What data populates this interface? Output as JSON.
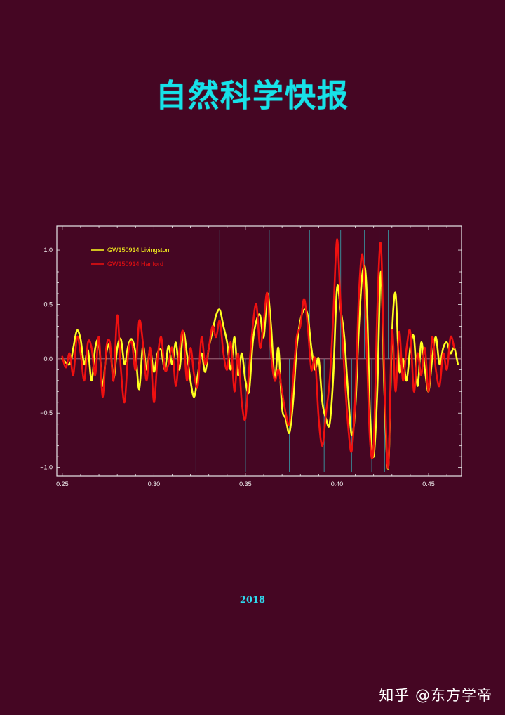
{
  "title": "自然科学快报",
  "year": "2018",
  "watermark": "知乎 @东方学帝",
  "colors": {
    "background": "#450623",
    "title": "#17e2e8",
    "livingston": "#ffff1e",
    "hanford": "#ef1010",
    "marker_lines": "#3a8a97",
    "frame": "#e8e8e8"
  },
  "chart_data": {
    "type": "line",
    "title": "",
    "xlabel": "",
    "ylabel": "",
    "xlim": [
      0.247,
      0.468
    ],
    "ylim": [
      -1.08,
      1.22
    ],
    "xticks": [
      0.25,
      0.3,
      0.35,
      0.4,
      0.45
    ],
    "xtick_labels": [
      "0.25",
      "0.30",
      "0.35",
      "0.40",
      "0.45"
    ],
    "yticks": [
      -1.0,
      -0.5,
      0.0,
      0.5,
      1.0
    ],
    "ytick_labels": [
      "−1.0",
      "−0.5",
      "0.0",
      "0.5",
      "1.0"
    ],
    "legend_position": "top-left",
    "grid": false,
    "zero_line": true,
    "marker_lines_top": [
      0.336,
      0.363,
      0.385,
      0.402,
      0.415,
      0.423,
      0.428
    ],
    "marker_lines_bottom": [
      0.323,
      0.35,
      0.374,
      0.393,
      0.408,
      0.419,
      0.426
    ],
    "series": [
      {
        "name": "GW150914 Livingston",
        "color": "#ffff1e",
        "x": [
          0.25,
          0.254,
          0.256,
          0.258,
          0.26,
          0.262,
          0.264,
          0.266,
          0.268,
          0.27,
          0.272,
          0.274,
          0.276,
          0.278,
          0.28,
          0.282,
          0.284,
          0.286,
          0.288,
          0.29,
          0.292,
          0.294,
          0.296,
          0.298,
          0.3,
          0.302,
          0.304,
          0.306,
          0.308,
          0.31,
          0.312,
          0.314,
          0.316,
          0.318,
          0.32,
          0.322,
          0.324,
          0.326,
          0.328,
          0.33,
          0.332,
          0.334,
          0.336,
          0.338,
          0.34,
          0.342,
          0.344,
          0.346,
          0.348,
          0.35,
          0.352,
          0.354,
          0.356,
          0.358,
          0.36,
          0.362,
          0.364,
          0.366,
          0.368,
          0.37,
          0.372,
          0.374,
          0.376,
          0.378,
          0.38,
          0.382,
          0.384,
          0.386,
          0.388,
          0.39,
          0.392,
          0.394,
          0.396,
          0.398,
          0.4,
          0.402,
          0.404,
          0.406,
          0.408,
          0.41,
          0.412,
          0.414,
          0.416,
          0.418,
          0.42,
          0.422,
          0.424,
          0.426,
          0.428,
          0.43,
          0.432,
          0.434,
          0.436,
          0.438,
          0.44,
          0.442,
          0.444,
          0.446,
          0.448,
          0.45,
          0.452,
          0.454,
          0.456,
          0.458,
          0.46,
          0.462,
          0.464,
          0.466
        ],
        "y": [
          0.0,
          -0.05,
          0.1,
          0.26,
          0.18,
          -0.05,
          0.08,
          -0.2,
          0.1,
          0.15,
          -0.25,
          0.05,
          0.12,
          -0.18,
          0.1,
          0.18,
          -0.05,
          0.12,
          0.18,
          0.05,
          -0.28,
          0.12,
          -0.1,
          0.08,
          -0.12,
          0.05,
          0.08,
          -0.1,
          0.12,
          -0.05,
          0.15,
          -0.1,
          0.25,
          0.05,
          -0.2,
          -0.35,
          -0.15,
          0.05,
          -0.12,
          0.1,
          0.25,
          0.4,
          0.45,
          0.3,
          0.15,
          -0.1,
          0.2,
          -0.15,
          0.05,
          -0.2,
          -0.3,
          0.15,
          0.35,
          0.4,
          0.2,
          0.6,
          0.3,
          -0.2,
          0.1,
          -0.45,
          -0.55,
          -0.68,
          -0.4,
          0.1,
          0.35,
          0.45,
          0.4,
          0.1,
          -0.1,
          0.0,
          -0.4,
          -0.55,
          -0.6,
          -0.15,
          0.65,
          0.45,
          0.2,
          -0.3,
          -0.7,
          -0.45,
          0.3,
          0.8,
          0.7,
          -0.5,
          -0.9,
          -0.3,
          0.8,
          -0.35,
          -1.0,
          0.2,
          0.6,
          -0.1,
          0.0,
          -0.2,
          0.1,
          0.2,
          -0.25,
          0.15,
          -0.1,
          -0.3,
          0.0,
          0.2,
          -0.05,
          0.1,
          0.15,
          0.05,
          0.1,
          -0.05
        ]
      },
      {
        "name": "GW150914 Hanford",
        "color": "#ef1010",
        "x": [
          0.25,
          0.252,
          0.254,
          0.256,
          0.258,
          0.26,
          0.262,
          0.264,
          0.266,
          0.268,
          0.27,
          0.272,
          0.274,
          0.276,
          0.278,
          0.28,
          0.282,
          0.284,
          0.286,
          0.288,
          0.29,
          0.292,
          0.294,
          0.296,
          0.298,
          0.3,
          0.302,
          0.304,
          0.306,
          0.308,
          0.31,
          0.312,
          0.314,
          0.316,
          0.318,
          0.32,
          0.322,
          0.324,
          0.326,
          0.328,
          0.33,
          0.332,
          0.334,
          0.336,
          0.338,
          0.34,
          0.342,
          0.344,
          0.346,
          0.348,
          0.35,
          0.352,
          0.354,
          0.356,
          0.358,
          0.36,
          0.362,
          0.364,
          0.366,
          0.368,
          0.37,
          0.372,
          0.374,
          0.376,
          0.378,
          0.38,
          0.382,
          0.384,
          0.386,
          0.388,
          0.39,
          0.392,
          0.394,
          0.396,
          0.398,
          0.4,
          0.402,
          0.404,
          0.406,
          0.408,
          0.41,
          0.412,
          0.414,
          0.416,
          0.418,
          0.42,
          0.422,
          0.424,
          0.426,
          0.428,
          0.43,
          0.432,
          0.434,
          0.436,
          0.438,
          0.44,
          0.442,
          0.444,
          0.446,
          0.448,
          0.45,
          0.452,
          0.454,
          0.456,
          0.458,
          0.46,
          0.462,
          0.464
        ],
        "y": [
          0.02,
          -0.08,
          0.05,
          -0.15,
          0.2,
          0.05,
          -0.2,
          0.15,
          0.1,
          -0.15,
          0.2,
          -0.35,
          0.1,
          0.15,
          -0.2,
          0.4,
          -0.1,
          -0.4,
          0.05,
          0.15,
          -0.1,
          0.35,
          0.15,
          -0.2,
          0.1,
          -0.4,
          0.0,
          0.2,
          -0.1,
          -0.05,
          0.1,
          -0.25,
          0.08,
          0.25,
          -0.2,
          0.1,
          -0.15,
          -0.25,
          0.2,
          -0.05,
          0.1,
          0.3,
          0.2,
          0.35,
          0.05,
          -0.1,
          0.15,
          -0.3,
          0.05,
          -0.4,
          -0.55,
          -0.1,
          0.3,
          0.5,
          0.1,
          0.35,
          0.6,
          0.05,
          -0.2,
          -0.1,
          -0.3,
          -0.5,
          -0.6,
          -0.2,
          0.2,
          0.3,
          0.55,
          0.3,
          -0.1,
          0.0,
          -0.55,
          -0.8,
          -0.5,
          -0.2,
          0.4,
          1.1,
          0.5,
          -0.1,
          -0.6,
          -0.85,
          -0.35,
          0.6,
          0.95,
          0.2,
          -0.75,
          -0.8,
          0.45,
          1.05,
          -0.2,
          -1.0,
          0.25,
          -0.3,
          0.25,
          -0.2,
          0.1,
          0.25,
          -0.3,
          0.05,
          -0.15,
          0.1,
          -0.3,
          0.2,
          -0.1,
          -0.25,
          0.05,
          -0.1,
          0.2,
          0.1
        ]
      }
    ]
  }
}
